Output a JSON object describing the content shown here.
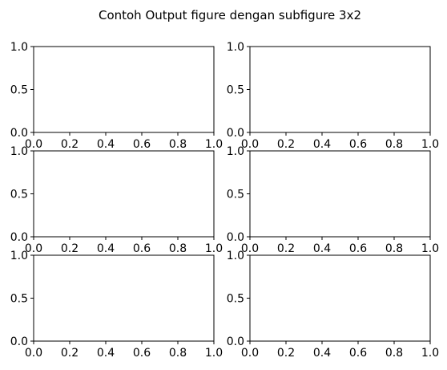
{
  "title": "Contoh Output figure dengan subfigure 3x2",
  "chart_data": {
    "type": "line",
    "title": "Contoh Output figure dengan subfigure 3x2",
    "grid": "3x2",
    "axis_color": "#000000",
    "background": "#ffffff",
    "subplots": [
      {
        "row": 1,
        "col": 1,
        "series": [],
        "xlim": [
          0.0,
          1.0
        ],
        "ylim": [
          0.0,
          1.0
        ],
        "x_ticks": [
          "0.0",
          "0.2",
          "0.4",
          "0.6",
          "0.8",
          "1.0"
        ],
        "y_ticks": [
          "0.0",
          "0.5",
          "1.0"
        ]
      },
      {
        "row": 1,
        "col": 2,
        "series": [],
        "xlim": [
          0.0,
          1.0
        ],
        "ylim": [
          0.0,
          1.0
        ],
        "x_ticks": [
          "0.0",
          "0.2",
          "0.4",
          "0.6",
          "0.8",
          "1.0"
        ],
        "y_ticks": [
          "0.0",
          "0.5",
          "1.0"
        ]
      },
      {
        "row": 2,
        "col": 1,
        "series": [],
        "xlim": [
          0.0,
          1.0
        ],
        "ylim": [
          0.0,
          1.0
        ],
        "x_ticks": [
          "0.0",
          "0.2",
          "0.4",
          "0.6",
          "0.8",
          "1.0"
        ],
        "y_ticks": [
          "0.0",
          "0.5",
          "1.0"
        ]
      },
      {
        "row": 2,
        "col": 2,
        "series": [],
        "xlim": [
          0.0,
          1.0
        ],
        "ylim": [
          0.0,
          1.0
        ],
        "x_ticks": [
          "0.0",
          "0.2",
          "0.4",
          "0.6",
          "0.8",
          "1.0"
        ],
        "y_ticks": [
          "0.0",
          "0.5",
          "1.0"
        ]
      },
      {
        "row": 3,
        "col": 1,
        "series": [],
        "xlim": [
          0.0,
          1.0
        ],
        "ylim": [
          0.0,
          1.0
        ],
        "x_ticks": [
          "0.0",
          "0.2",
          "0.4",
          "0.6",
          "0.8",
          "1.0"
        ],
        "y_ticks": [
          "0.0",
          "0.5",
          "1.0"
        ]
      },
      {
        "row": 3,
        "col": 2,
        "series": [],
        "xlim": [
          0.0,
          1.0
        ],
        "ylim": [
          0.0,
          1.0
        ],
        "x_ticks": [
          "0.0",
          "0.2",
          "0.4",
          "0.6",
          "0.8",
          "1.0"
        ],
        "y_ticks": [
          "0.0",
          "0.5",
          "1.0"
        ]
      }
    ]
  }
}
